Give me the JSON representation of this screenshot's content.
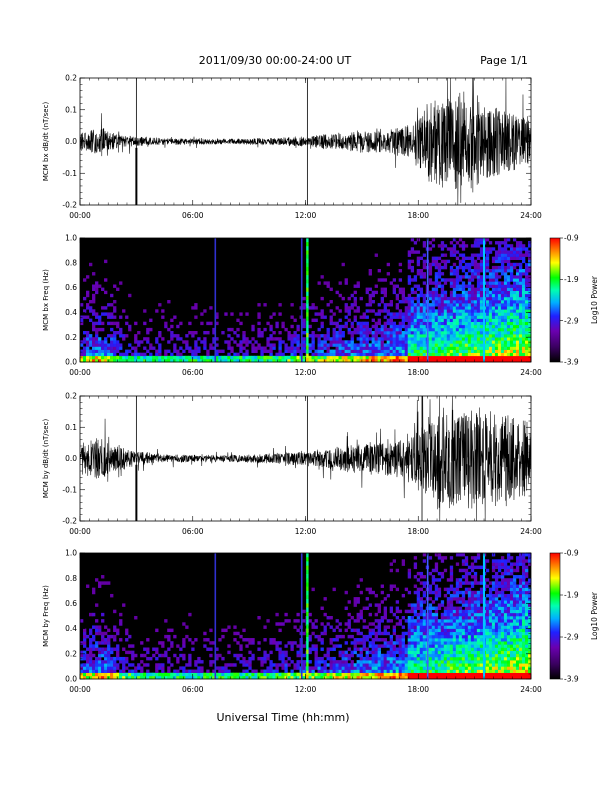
{
  "header": {
    "title": "2011/09/30  00:00-24:00 UT",
    "page": "Page 1/1"
  },
  "footer": {
    "xlabel": "Universal Time (hh:mm)"
  },
  "colors": {
    "background": "#000000",
    "trace": "#000000",
    "colormap": [
      "#000000",
      "#3a0060",
      "#6a00b0",
      "#2020ff",
      "#00b0ff",
      "#00ffb0",
      "#00ff00",
      "#ffff00",
      "#ff8000",
      "#ff0000"
    ]
  },
  "chart_data": [
    {
      "type": "line",
      "ylabel": "MCM bx dB/dt (nT/sec)",
      "xlim": [
        0,
        24
      ],
      "ylim": [
        -0.2,
        0.2
      ],
      "xticks": [
        "00:00",
        "06:00",
        "12:00",
        "18:00",
        "24:00"
      ],
      "yticks": [
        "-0.2",
        "-0.1",
        "0.0",
        "0.1",
        "0.2"
      ],
      "spikes_at_hours": [
        3.0,
        12.1
      ],
      "envelope": {
        "x": [
          0,
          1,
          2,
          3,
          4,
          6,
          8,
          10,
          12,
          13,
          14,
          15,
          16,
          17,
          18,
          19,
          20,
          21,
          22,
          23,
          24
        ],
        "amplitude": [
          0.04,
          0.06,
          0.03,
          0.02,
          0.015,
          0.012,
          0.012,
          0.014,
          0.02,
          0.03,
          0.035,
          0.045,
          0.05,
          0.06,
          0.1,
          0.2,
          0.2,
          0.18,
          0.16,
          0.12,
          0.08
        ]
      }
    },
    {
      "type": "heatmap",
      "ylabel": "MCM bx Freq (Hz)",
      "xlim": [
        0,
        24
      ],
      "ylim": [
        0,
        1
      ],
      "xticks": [
        "00:00",
        "06:00",
        "12:00",
        "18:00",
        "24:00"
      ],
      "yticks": [
        "0.0",
        "0.2",
        "0.4",
        "0.6",
        "0.8",
        "1.0"
      ],
      "colorbar": {
        "label": "Log10 Power",
        "range": [
          -3.9,
          -0.9
        ],
        "ticks": [
          "-0.9",
          "-1.9",
          "-2.9",
          "-3.9"
        ]
      },
      "vertical_lines_hours": [
        7.2,
        11.8,
        12.1,
        18.5,
        21.5
      ]
    },
    {
      "type": "line",
      "ylabel": "MCM by dB/dt (nT/sec)",
      "xlim": [
        0,
        24
      ],
      "ylim": [
        -0.2,
        0.2
      ],
      "xticks": [
        "00:00",
        "06:00",
        "12:00",
        "18:00",
        "24:00"
      ],
      "yticks": [
        "-0.2",
        "-0.1",
        "0.0",
        "0.1",
        "0.2"
      ],
      "spikes_at_hours": [
        3.0,
        12.1,
        18.2
      ],
      "envelope": {
        "x": [
          0,
          1,
          2,
          3,
          4,
          6,
          8,
          10,
          12,
          13,
          14,
          15,
          16,
          17,
          18,
          19,
          20,
          21,
          22,
          23,
          24
        ],
        "amplitude": [
          0.06,
          0.09,
          0.05,
          0.035,
          0.02,
          0.015,
          0.015,
          0.02,
          0.03,
          0.04,
          0.05,
          0.06,
          0.07,
          0.08,
          0.12,
          0.2,
          0.2,
          0.2,
          0.2,
          0.18,
          0.14
        ]
      }
    },
    {
      "type": "heatmap",
      "ylabel": "MCM by Freq (Hz)",
      "xlim": [
        0,
        24
      ],
      "ylim": [
        0,
        1
      ],
      "xticks": [
        "00:00",
        "06:00",
        "12:00",
        "18:00",
        "24:00"
      ],
      "yticks": [
        "0.0",
        "0.2",
        "0.4",
        "0.6",
        "0.8",
        "1.0"
      ],
      "colorbar": {
        "label": "Log10 Power",
        "range": [
          -3.9,
          -0.9
        ],
        "ticks": [
          "-0.9",
          "-1.9",
          "-2.9",
          "-3.9"
        ]
      },
      "vertical_lines_hours": [
        7.2,
        11.8,
        12.1,
        18.5,
        21.5
      ]
    }
  ]
}
